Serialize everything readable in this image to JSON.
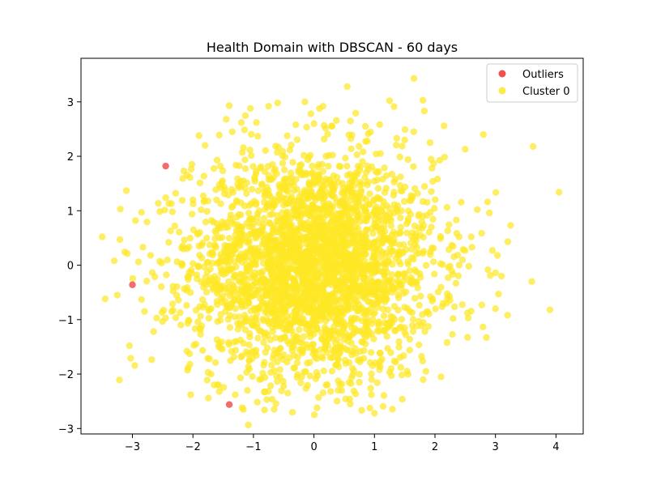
{
  "chart_data": {
    "type": "scatter",
    "title": "Health Domain with DBSCAN - 60 days",
    "xlabel": "",
    "ylabel": "",
    "xlim": [
      -3.85,
      4.45
    ],
    "ylim": [
      -3.1,
      3.8
    ],
    "xticks": [
      -3,
      -2,
      -1,
      0,
      1,
      2,
      3,
      4
    ],
    "yticks": [
      -3,
      -2,
      -1,
      0,
      1,
      2,
      3
    ],
    "xtick_labels": [
      "−3",
      "−2",
      "−1",
      "0",
      "1",
      "2",
      "3",
      "4"
    ],
    "ytick_labels": [
      "−3",
      "−2",
      "−1",
      "0",
      "1",
      "2",
      "3"
    ],
    "grid": false,
    "legend_position": "top-right",
    "series": [
      {
        "name": "Outliers",
        "color": "#ee3333",
        "points": [
          [
            -2.45,
            1.82
          ],
          [
            -3.0,
            -0.36
          ],
          [
            -1.4,
            -2.56
          ]
        ]
      },
      {
        "name": "Cluster 0",
        "color": "#fde725",
        "n_points": 3000,
        "points": [
          [
            -3.5,
            0.52
          ],
          [
            -3.45,
            -0.62
          ],
          [
            -3.3,
            0.08
          ],
          [
            -3.25,
            -0.55
          ],
          [
            -3.2,
            1.03
          ],
          [
            -3.1,
            1.37
          ],
          [
            -3.05,
            -1.48
          ],
          [
            -2.95,
            0.82
          ],
          [
            -2.9,
            0.06
          ],
          [
            -2.85,
            0.97
          ],
          [
            -2.85,
            -0.63
          ],
          [
            -2.8,
            -0.85
          ],
          [
            -2.7,
            0.18
          ],
          [
            -2.65,
            -1.22
          ],
          [
            -2.6,
            -0.97
          ],
          [
            -2.55,
            0.07
          ],
          [
            -2.45,
            1.24
          ],
          [
            -2.4,
            0.42
          ],
          [
            -2.35,
            -0.85
          ],
          [
            -2.3,
            0.72
          ],
          [
            -2.2,
            -1.1
          ],
          [
            -2.15,
            1.73
          ],
          [
            -2.1,
            -1.58
          ],
          [
            -2.05,
            -1.82
          ],
          [
            -2.0,
            1.2
          ],
          [
            -1.95,
            -1.45
          ],
          [
            -1.9,
            2.38
          ],
          [
            -1.8,
            2.2
          ],
          [
            -1.75,
            -1.97
          ],
          [
            -1.7,
            -2.0
          ],
          [
            -1.65,
            -2.2
          ],
          [
            -1.6,
            1.93
          ],
          [
            -1.55,
            1.82
          ],
          [
            -1.45,
            2.68
          ],
          [
            -1.4,
            2.93
          ],
          [
            -1.35,
            2.45
          ],
          [
            -1.3,
            -2.38
          ],
          [
            -1.2,
            2.62
          ],
          [
            -1.1,
            -2.3
          ],
          [
            -1.05,
            2.88
          ],
          [
            -0.95,
            2.62
          ],
          [
            -0.9,
            -2.1
          ],
          [
            -0.75,
            2.92
          ],
          [
            -0.6,
            2.98
          ],
          [
            -0.5,
            -2.22
          ],
          [
            -0.3,
            2.58
          ],
          [
            -0.2,
            -2.05
          ],
          [
            -0.15,
            3.0
          ],
          [
            -0.05,
            2.78
          ],
          [
            0.0,
            2.6
          ],
          [
            0.05,
            -2.62
          ],
          [
            0.15,
            2.92
          ],
          [
            0.2,
            -2.2
          ],
          [
            0.3,
            2.55
          ],
          [
            0.4,
            -2.3
          ],
          [
            0.55,
            3.28
          ],
          [
            0.6,
            -2.55
          ],
          [
            0.75,
            -2.15
          ],
          [
            0.85,
            2.55
          ],
          [
            0.95,
            -2.38
          ],
          [
            1.0,
            -2.72
          ],
          [
            1.1,
            2.05
          ],
          [
            1.25,
            3.02
          ],
          [
            1.35,
            -1.78
          ],
          [
            1.5,
            2.3
          ],
          [
            1.65,
            2.45
          ],
          [
            1.8,
            3.03
          ],
          [
            1.85,
            -1.95
          ],
          [
            1.95,
            1.78
          ],
          [
            2.1,
            -2.05
          ],
          [
            2.15,
            2.56
          ],
          [
            2.2,
            -1.42
          ],
          [
            2.3,
            -0.98
          ],
          [
            2.4,
            0.0
          ],
          [
            2.5,
            2.13
          ],
          [
            2.55,
            -0.97
          ],
          [
            2.6,
            0.52
          ],
          [
            2.7,
            1.02
          ],
          [
            2.8,
            2.4
          ],
          [
            2.85,
            -1.33
          ],
          [
            2.9,
            0.96
          ],
          [
            2.95,
            0.27
          ],
          [
            3.0,
            -0.8
          ],
          [
            3.05,
            -0.53
          ],
          [
            3.1,
            -0.2
          ],
          [
            3.2,
            -0.92
          ],
          [
            3.25,
            0.73
          ],
          [
            3.6,
            -0.3
          ],
          [
            3.9,
            -0.82
          ],
          [
            4.05,
            1.34
          ],
          [
            -0.8,
            -1.6
          ],
          [
            0.7,
            1.7
          ],
          [
            -1.3,
            0.4
          ],
          [
            1.4,
            -0.6
          ],
          [
            -0.3,
            -0.9
          ],
          [
            0.25,
            0.45
          ],
          [
            -0.5,
            1.1
          ],
          [
            0.9,
            -1.2
          ],
          [
            -1.7,
            -0.8
          ],
          [
            1.8,
            0.9
          ]
        ]
      }
    ]
  },
  "legend": {
    "items": [
      {
        "label": "Outliers",
        "color": "#ee3333"
      },
      {
        "label": "Cluster 0",
        "color": "#fde725"
      }
    ]
  }
}
